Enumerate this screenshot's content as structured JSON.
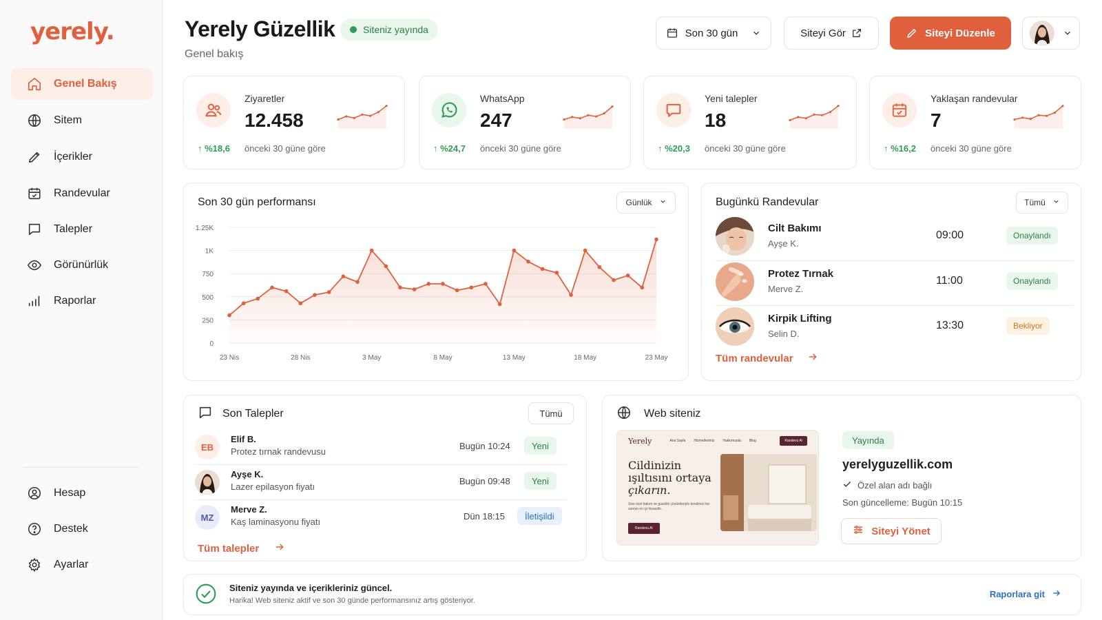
{
  "brand": {
    "logo": "yerely.",
    "accent": "#e0603e"
  },
  "sidebar": {
    "items": [
      {
        "label": "Genel Bakış",
        "icon": "home-icon",
        "active": true
      },
      {
        "label": "Sitem",
        "icon": "globe-icon"
      },
      {
        "label": "İçerikler",
        "icon": "pencil-icon"
      },
      {
        "label": "Randevular",
        "icon": "calendar-icon"
      },
      {
        "label": "Talepler",
        "icon": "chat-icon"
      },
      {
        "label": "Görünürlük",
        "icon": "eye-icon"
      },
      {
        "label": "Raporlar",
        "icon": "bar-chart-icon"
      }
    ],
    "bottom": [
      {
        "label": "Hesap",
        "icon": "user-icon"
      },
      {
        "label": "Destek",
        "icon": "help-icon"
      },
      {
        "label": "Ayarlar",
        "icon": "gear-icon"
      }
    ]
  },
  "header": {
    "title": "Yerely Güzellik",
    "subtitle": "Genel bakış",
    "status": "Siteniz yayında",
    "range": "Son 30 gün",
    "view_site": "Siteyi Gör",
    "edit_site": "Siteyi Düzenle"
  },
  "stats": [
    {
      "label": "Ziyaretler",
      "value": "12.458",
      "change": "%18,6",
      "compare": "önceki 30 güne göre",
      "icon": "users-icon",
      "trend": [
        3,
        4,
        3.5,
        4.6,
        4.2,
        5.4,
        7.4
      ]
    },
    {
      "label": "WhatsApp",
      "value": "247",
      "change": "%24,7",
      "compare": "önceki 30 güne göre",
      "icon": "whatsapp-icon",
      "trend": [
        3,
        3.8,
        3.4,
        4.4,
        4.0,
        5.0,
        7.2
      ]
    },
    {
      "label": "Yeni talepler",
      "value": "18",
      "change": "%20,3",
      "compare": "önceki 30 güne göre",
      "icon": "message-icon",
      "trend": [
        2.8,
        3.8,
        3.4,
        4.6,
        4.4,
        5.4,
        7.4
      ]
    },
    {
      "label": "Yaklaşan randevular",
      "value": "7",
      "change": "%16,2",
      "compare": "önceki 30 güne göre",
      "icon": "calendar-icon",
      "trend": [
        3,
        3.6,
        3.2,
        4.4,
        4.2,
        5.2,
        7.4
      ]
    }
  ],
  "performance": {
    "title": "Son 30 gün performansı",
    "period": "Günlük"
  },
  "chart_data": {
    "type": "area",
    "title": "Son 30 gün performansı",
    "y_ticks": [
      "0",
      "250",
      "500",
      "750",
      "1K",
      "1.25K"
    ],
    "ylim": [
      0,
      1250
    ],
    "x_tick_labels": [
      "23 Nis",
      "28 Nis",
      "3 May",
      "8 May",
      "13 May",
      "18 May",
      "23 May"
    ],
    "x": [
      "23 Nis",
      "24 Nis",
      "25 Nis",
      "26 Nis",
      "27 Nis",
      "28 Nis",
      "29 Nis",
      "30 Nis",
      "1 May",
      "2 May",
      "3 May",
      "4 May",
      "5 May",
      "6 May",
      "7 May",
      "8 May",
      "9 May",
      "10 May",
      "11 May",
      "12 May",
      "13 May",
      "14 May",
      "15 May",
      "16 May",
      "17 May",
      "18 May",
      "19 May",
      "20 May",
      "21 May",
      "22 May",
      "23 May"
    ],
    "values": [
      300,
      430,
      480,
      600,
      560,
      430,
      520,
      550,
      720,
      660,
      1000,
      830,
      600,
      580,
      640,
      640,
      570,
      600,
      640,
      420,
      1000,
      880,
      800,
      760,
      520,
      1000,
      820,
      680,
      730,
      600,
      1120
    ],
    "grid": true,
    "color": "#e0603e"
  },
  "appointments": {
    "title": "Bugünkü Randevular",
    "filter": "Tümü",
    "items": [
      {
        "service": "Cilt Bakımı",
        "customer": "Ayşe K.",
        "time": "09:00",
        "status": "Onaylandı",
        "kind": "ok"
      },
      {
        "service": "Protez Tırnak",
        "customer": "Merve Z.",
        "time": "11:00",
        "status": "Onaylandı",
        "kind": "ok"
      },
      {
        "service": "Kirpik Lifting",
        "customer": "Selin D.",
        "time": "13:30",
        "status": "Bekliyor",
        "kind": "wait"
      }
    ],
    "all_link": "Tüm randevular"
  },
  "requests": {
    "title": "Son Talepler",
    "filter": "Tümü",
    "items": [
      {
        "initials": "EB",
        "name": "Elif B.",
        "message": "Protez tırnak randevusu",
        "time": "Bugün 10:24",
        "status": "Yeni",
        "kind": "new"
      },
      {
        "initials": "",
        "name": "Ayşe K.",
        "message": "Lazer epilasyon fiyatı",
        "time": "Bugün 09:48",
        "status": "Yeni",
        "kind": "new"
      },
      {
        "initials": "MZ",
        "name": "Merve Z.",
        "message": "Kaş laminasyonu fiyatı",
        "time": "Dün 18:15",
        "status": "İletişildi",
        "kind": "done"
      }
    ],
    "all_link": "Tüm talepler"
  },
  "website": {
    "title": "Web siteniz",
    "preview": {
      "logo": "Yerely",
      "menu": [
        "Ana Sayfa",
        "Hizmetlerimiz",
        "Hakkımızda",
        "Blog"
      ],
      "cta": "Randevu Al",
      "headline_1": "Cildinizin",
      "headline_2": "ışıltısını ortaya",
      "headline_3": "çıkarın.",
      "text": "Size özel bakım ve güzellik çözümleriyle kendinizi her zaman en iyi hissedin.",
      "button": "Randevu Al"
    },
    "status": "Yayında",
    "domain": "yerelyguzellik.com",
    "domain_note": "Özel alan adı bağlı",
    "updated": "Son güncelleme: Bugün 10:15",
    "manage": "Siteyi Yönet"
  },
  "banner": {
    "title": "Siteniz yayında ve içerikleriniz güncel.",
    "text": "Harika! Web siteniz aktif ve son 30 günde performansınız artış gösteriyor.",
    "link": "Raporlara git"
  }
}
